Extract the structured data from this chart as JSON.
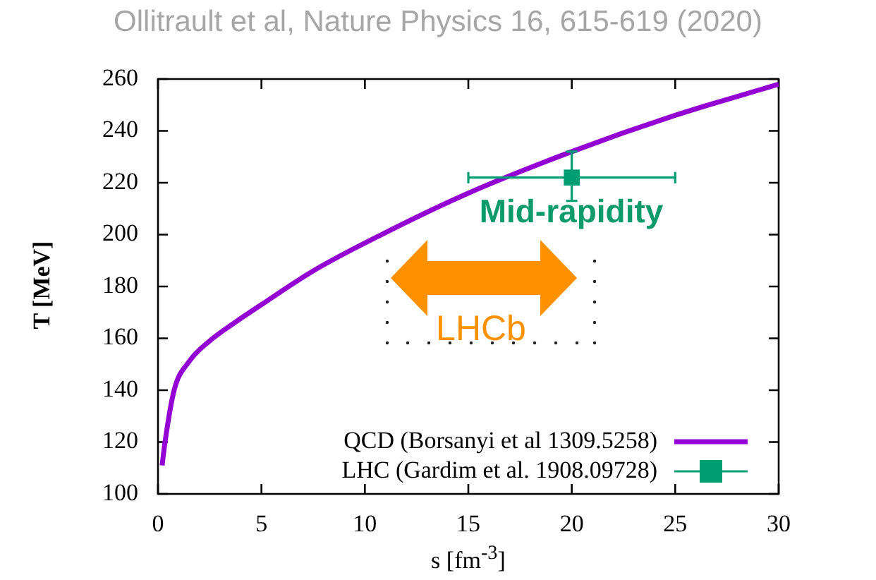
{
  "chart_data": {
    "type": "line",
    "title": "Ollitrault et al, Nature Physics 16, 615-619 (2020)",
    "xlabel": "s [fm$^{-3}$]",
    "ylabel": "T [MeV]",
    "xlim": [
      0,
      30
    ],
    "xticks": [
      0,
      5,
      10,
      15,
      20,
      25,
      30
    ],
    "ylim": [
      100,
      260
    ],
    "yticks": [
      100,
      120,
      140,
      160,
      180,
      200,
      220,
      240,
      260
    ],
    "grid": false,
    "legend": "bottom right",
    "series": [
      {
        "name": "QCD (Borsanyi et al 1309.5258)",
        "color": "#9400d3",
        "marker": "none",
        "x": [
          0.2,
          0.34,
          0.78,
          1.5,
          2.5,
          3.7,
          5,
          7.5,
          10.8,
          15,
          20,
          25,
          30
        ],
        "values": [
          111,
          120,
          140,
          151,
          159,
          166,
          173,
          186,
          200,
          216,
          232,
          246,
          258
        ]
      },
      {
        "name": "LHC (Gardim et al. 1908.09728)",
        "type": "scatter",
        "color": "#009e73",
        "marker": "square",
        "x": [
          20
        ],
        "values": [
          222
        ],
        "errors": [
          [
            213,
            232
          ]
        ],
        "xerrors": [
          [
            15,
            25
          ]
        ]
      }
    ],
    "annotations": [
      "Mid-rapidity",
      "LHCb"
    ]
  }
}
